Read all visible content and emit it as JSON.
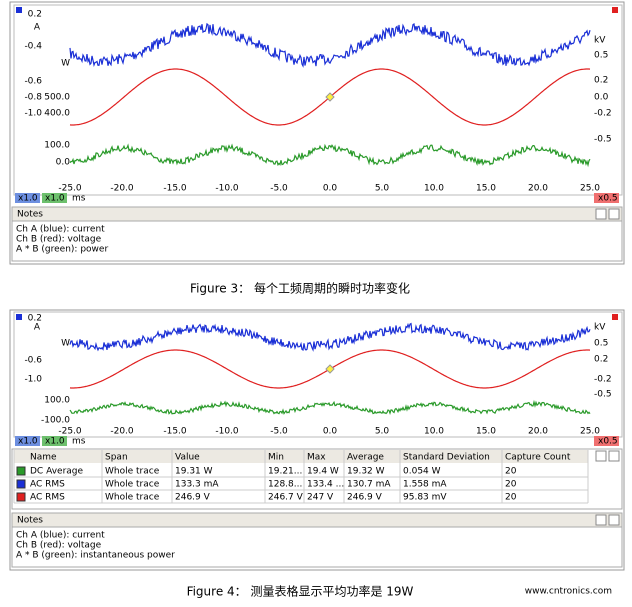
{
  "figure3": {
    "left_axis": [
      "0.2",
      "A",
      "-0.4",
      "W",
      "-0.6",
      "-0.8",
      "500.0",
      "-1.0",
      "400.0",
      "100.0",
      "0.0"
    ],
    "right_axis": [
      "kV",
      "0.5",
      "0.2",
      "0.0",
      "-0.2",
      "-0.5"
    ],
    "x_axis": [
      "-25.0",
      "-20.0",
      "-15.0",
      "-10.0",
      "-5.0",
      "0.0",
      "5.0",
      "10.0",
      "15.0",
      "20.0",
      "25.0"
    ],
    "x_unit": "ms",
    "buttons": [
      "x1.0",
      "x1.0",
      "x0.5"
    ],
    "notes": {
      "title": "Notes",
      "lines": [
        "Ch A (blue): current",
        "Ch B (red): voltage",
        "A * B (green): power"
      ]
    },
    "caption": "Figure 3： 每个工频周期的瞬时功率变化"
  },
  "figure4": {
    "left_axis": [
      "0.2",
      "A",
      "W",
      "-0.6",
      "-1.0",
      "100.0",
      "-100.0"
    ],
    "right_axis": [
      "kV",
      "0.5",
      "0.2",
      "-0.2",
      "-0.5"
    ],
    "x_axis": [
      "-25.0",
      "-20.0",
      "-15.0",
      "-10.0",
      "-5.0",
      "0.0",
      "5.0",
      "10.0",
      "15.0",
      "20.0",
      "25.0"
    ],
    "x_unit": "ms",
    "buttons": [
      "x1.0",
      "x1.0",
      "x0.5"
    ],
    "table": {
      "header": [
        "Name",
        "Span",
        "Value",
        "Min",
        "Max",
        "Average",
        "Standard Deviation",
        "Capture Count"
      ],
      "rows": [
        [
          "DC Average",
          "Whole trace",
          "19.31 W",
          "19.21...",
          "19.4 W",
          "19.32 W",
          "0.054 W",
          "20"
        ],
        [
          "AC RMS",
          "Whole trace",
          "133.3 mA",
          "128.8...",
          "133.4 ...",
          "130.7 mA",
          "1.558 mA",
          "20"
        ],
        [
          "AC RMS",
          "Whole trace",
          "246.9 V",
          "246.7 V",
          "247 V",
          "246.9 V",
          "95.83 mV",
          "20"
        ]
      ]
    },
    "notes": {
      "title": "Notes",
      "lines": [
        "Ch A (blue): current",
        "Ch B (red): voltage",
        "A * B (green): instantaneous power"
      ]
    },
    "caption": "Figure 4： 测量表格显示平均功率是 19W"
  },
  "watermark": "www.cntronics.com"
}
